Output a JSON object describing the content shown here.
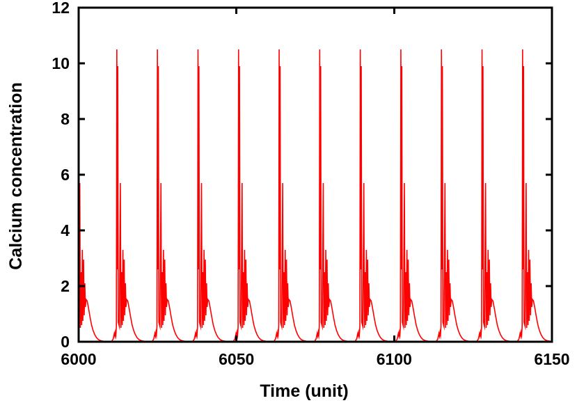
{
  "page": {
    "background": "#ffffff"
  },
  "chart_data": {
    "type": "line",
    "title": "",
    "xlabel": "Time (unit)",
    "ylabel": "Calcium concentration",
    "xlim": [
      6000,
      6150
    ],
    "ylim": [
      0,
      12
    ],
    "xticks": [
      6000,
      6050,
      6100,
      6150
    ],
    "yticks": [
      0,
      2,
      4,
      6,
      8,
      10,
      12
    ],
    "grid": false,
    "legend": null,
    "axis_color": "#000000",
    "tick_label_color": "#000000",
    "series": [
      {
        "name": "calcium-concentration",
        "color": "#ff0000",
        "pattern": "periodic-bursting-spikes",
        "burst_period": 12.86,
        "num_bursts": 12,
        "main_peak_value": 10.5,
        "secondary_peak_value": 5.7,
        "small_spike_values": [
          3.3,
          2.95,
          2.5,
          2.1
        ],
        "plateau_shoulder_value": 1.5,
        "baseline_value": 0.02,
        "burst_main_spike_times": [
          5999.24,
          6012.1,
          6024.96,
          6037.82,
          6050.68,
          6063.54,
          6076.4,
          6089.26,
          6102.12,
          6114.98,
          6127.84,
          6140.7
        ],
        "burst_waveform_dt_value": [
          [
            -1.62,
            0.02
          ],
          [
            -1.15,
            0.1
          ],
          [
            -0.8,
            0.3
          ],
          [
            -0.62,
            0.2
          ],
          [
            -0.45,
            0.34
          ],
          [
            -0.3,
            0.24
          ],
          [
            -0.14,
            0.55
          ],
          [
            0.0,
            10.5
          ],
          [
            0.13,
            2.6
          ],
          [
            0.3,
            9.9
          ],
          [
            0.46,
            0.7
          ],
          [
            0.8,
            0.55
          ],
          [
            1.12,
            5.7
          ],
          [
            1.3,
            0.5
          ],
          [
            1.55,
            2.5
          ],
          [
            1.72,
            0.6
          ],
          [
            1.92,
            3.3
          ],
          [
            2.1,
            0.75
          ],
          [
            2.32,
            2.95
          ],
          [
            2.52,
            0.95
          ],
          [
            2.72,
            2.1
          ],
          [
            2.9,
            1.25
          ],
          [
            3.1,
            1.52
          ],
          [
            3.45,
            1.47
          ],
          [
            3.9,
            1.2
          ],
          [
            4.35,
            0.9
          ],
          [
            4.85,
            0.6
          ],
          [
            5.35,
            0.4
          ],
          [
            5.85,
            0.26
          ],
          [
            6.4,
            0.15
          ],
          [
            7.0,
            0.08
          ],
          [
            7.7,
            0.04
          ],
          [
            8.6,
            0.02
          ],
          [
            9.8,
            0.012
          ],
          [
            11.23,
            0.015
          ]
        ]
      }
    ]
  }
}
